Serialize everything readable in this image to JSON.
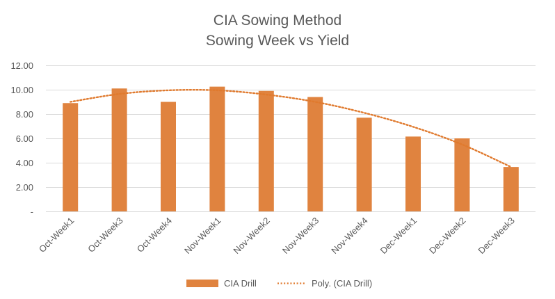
{
  "chart_data": {
    "type": "bar",
    "title": "CIA Sowing Method",
    "subtitle": "Sowing Week vs Yield",
    "xlabel": "",
    "ylabel": "",
    "categories": [
      "Oct-Week1",
      "Oct-Week3",
      "Oct-Week4",
      "Nov-Week1",
      "Nov-Week2",
      "Nov-Week3",
      "Nov-Week4",
      "Dec-Week1",
      "Dec-Week2",
      "Dec-Week3"
    ],
    "series": [
      {
        "name": "CIA Drill",
        "values": [
          8.9,
          10.1,
          9.0,
          10.25,
          9.9,
          9.4,
          7.7,
          6.15,
          6.0,
          3.65
        ]
      }
    ],
    "trendline": {
      "name": "Poly. (CIA Drill)",
      "kind": "polynomial",
      "values": [
        9.0,
        9.65,
        9.95,
        9.95,
        9.6,
        9.0,
        8.1,
        6.95,
        5.5,
        3.65
      ]
    },
    "y_ticks": [
      "-",
      "2.00",
      "4.00",
      "6.00",
      "8.00",
      "10.00",
      "12.00"
    ],
    "ylim": [
      0,
      12
    ],
    "grid": true,
    "legend_position": "bottom",
    "colors": {
      "bar": "#E0833F",
      "trend": "#E07A2E",
      "grid": "#D9D9D9",
      "text": "#595959"
    }
  }
}
